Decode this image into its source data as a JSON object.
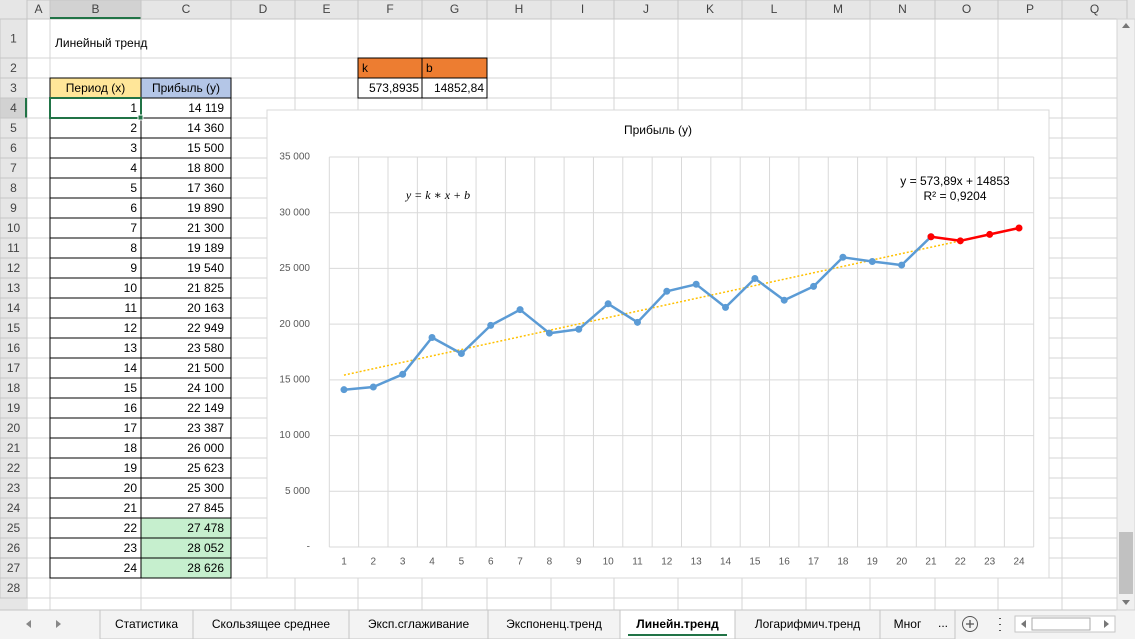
{
  "sheet_title": "Линейный тренд",
  "columns": [
    "A",
    "B",
    "C",
    "D",
    "E",
    "F",
    "G",
    "H",
    "I",
    "J",
    "K",
    "L",
    "M",
    "N",
    "O",
    "P",
    "Q"
  ],
  "rows": [
    1,
    2,
    3,
    4,
    5,
    6,
    7,
    8,
    9,
    10,
    11,
    12,
    13,
    14,
    15,
    16,
    17,
    18,
    19,
    20,
    21,
    22,
    23,
    24,
    25,
    26,
    27,
    28
  ],
  "data_table": {
    "header": [
      "Период (x)",
      "Прибыль (y)"
    ],
    "rows": [
      [
        1,
        "14 119"
      ],
      [
        2,
        "14 360"
      ],
      [
        3,
        "15 500"
      ],
      [
        4,
        "18 800"
      ],
      [
        5,
        "17 360"
      ],
      [
        6,
        "19 890"
      ],
      [
        7,
        "21 300"
      ],
      [
        8,
        "19 189"
      ],
      [
        9,
        "19 540"
      ],
      [
        10,
        "21 825"
      ],
      [
        11,
        "20 163"
      ],
      [
        12,
        "22 949"
      ],
      [
        13,
        "23 580"
      ],
      [
        14,
        "21 500"
      ],
      [
        15,
        "24 100"
      ],
      [
        16,
        "22 149"
      ],
      [
        17,
        "23 387"
      ],
      [
        18,
        "26 000"
      ],
      [
        19,
        "25 623"
      ],
      [
        20,
        "25 300"
      ],
      [
        21,
        "27 845"
      ],
      [
        22,
        "27 478"
      ],
      [
        23,
        "28 052"
      ],
      [
        24,
        "28 626"
      ]
    ]
  },
  "coef_table": {
    "header": [
      "k",
      "b"
    ],
    "values": [
      "573,8935",
      "14852,84"
    ]
  },
  "chart_data": {
    "type": "line",
    "title": "Прибыль (y)",
    "categories": [
      1,
      2,
      3,
      4,
      5,
      6,
      7,
      8,
      9,
      10,
      11,
      12,
      13,
      14,
      15,
      16,
      17,
      18,
      19,
      20,
      21,
      22,
      23,
      24
    ],
    "series": [
      {
        "color": "#5b9bd5",
        "values": [
          14119,
          14360,
          15500,
          18800,
          17360,
          19890,
          21300,
          19189,
          19540,
          21825,
          20163,
          22949,
          23580,
          21500,
          24100,
          22149,
          23387,
          26000,
          25623,
          25300,
          27845,
          null,
          null,
          null
        ]
      },
      {
        "color": "#ff0000",
        "values": [
          null,
          null,
          null,
          null,
          null,
          null,
          null,
          null,
          null,
          null,
          null,
          null,
          null,
          null,
          null,
          null,
          null,
          null,
          null,
          null,
          27845,
          27478,
          28052,
          28626
        ]
      }
    ],
    "ylim": [
      0,
      35000
    ],
    "yticks": [
      {
        "value": 0,
        "label": "-"
      },
      {
        "value": 5000,
        "label": "5 000"
      },
      {
        "value": 10000,
        "label": "10 000"
      },
      {
        "value": 15000,
        "label": "15 000"
      },
      {
        "value": 20000,
        "label": "20 000"
      },
      {
        "value": 25000,
        "label": "25 000"
      },
      {
        "value": 30000,
        "label": "30 000"
      },
      {
        "value": 35000,
        "label": "35 000"
      }
    ],
    "grid": true,
    "markers": true,
    "trendline": {
      "slope": 573.89,
      "intercept": 14853,
      "color": "#ffc000",
      "label": "y = 573,89x + 14853",
      "r2_label": "R² = 0,9204"
    },
    "annotation": "y = k ∗ x + b"
  },
  "tabs": [
    "Статистика",
    "Скользящее среднее",
    "Эксп.сглаживание",
    "Экспоненц.тренд",
    "Линейн.тренд",
    "Логарифмич.тренд",
    "Мног"
  ],
  "active_tab": 4,
  "tabs_more": "..."
}
